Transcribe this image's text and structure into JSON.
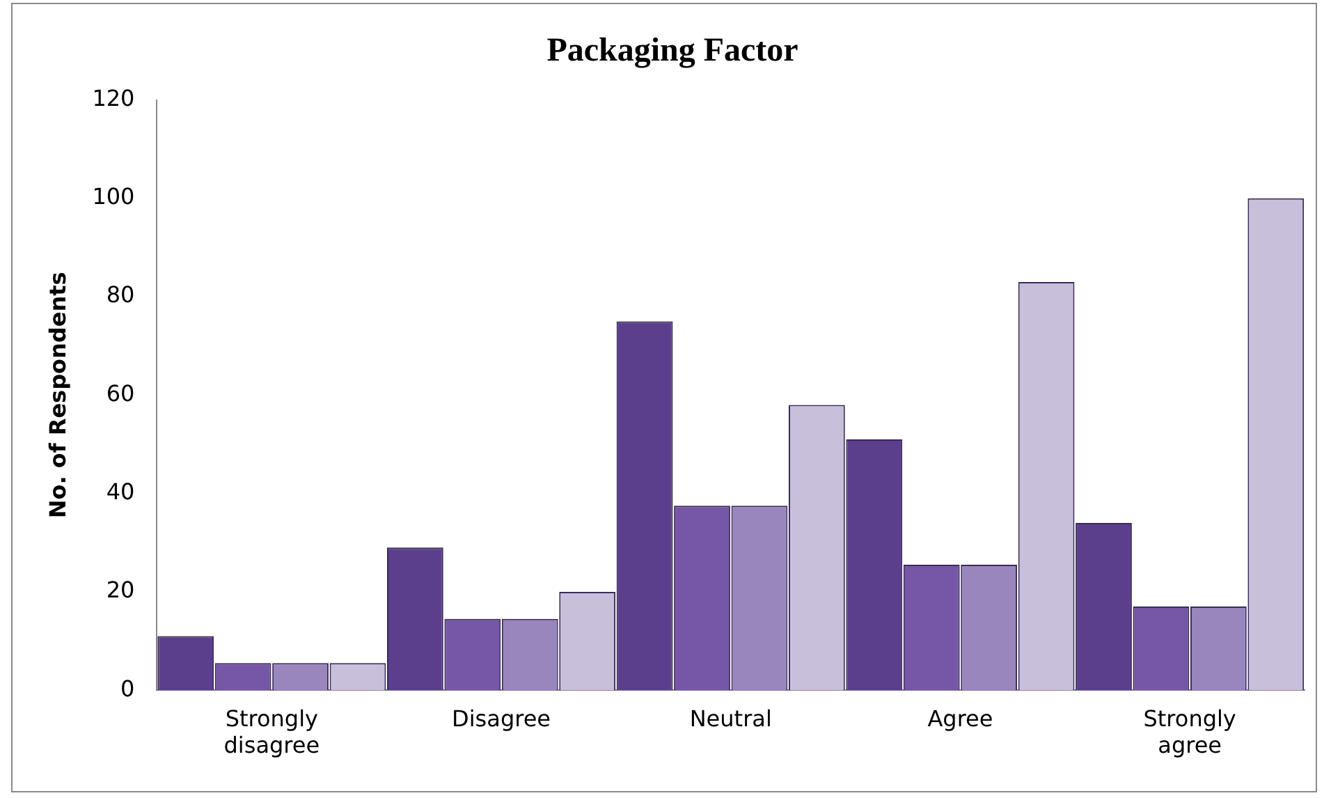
{
  "chart_data": {
    "type": "bar",
    "title": "Packaging Factor",
    "ylabel": "No. of Respondents",
    "categories": [
      "Strongly disagree",
      "Disagree",
      "Neutral",
      "Agree",
      "Strongly agree"
    ],
    "series": [
      {
        "color": "#5b3f8c",
        "values": [
          11,
          29,
          75,
          51,
          34
        ]
      },
      {
        "color": "#7656a6",
        "values": [
          5.5,
          14.5,
          37.5,
          25.5,
          17
        ]
      },
      {
        "color": "#9886bd",
        "values": [
          5.5,
          14.5,
          37.5,
          25.5,
          17
        ]
      },
      {
        "color": "#c8c0da",
        "values": [
          5.5,
          20,
          58,
          83,
          100
        ]
      }
    ],
    "ylim": [
      0,
      120
    ],
    "yticks": [
      0,
      20,
      40,
      60,
      80,
      100,
      120
    ],
    "grid": false,
    "legend": false
  }
}
